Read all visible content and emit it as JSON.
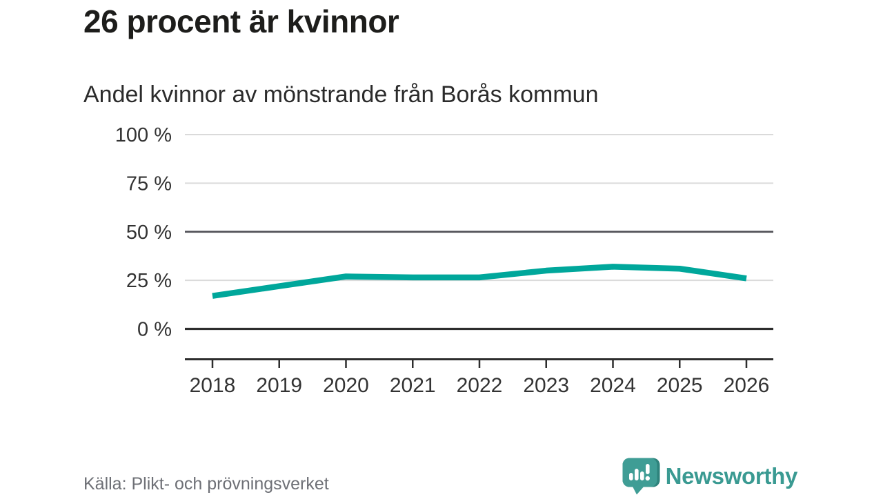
{
  "header": {
    "title": "26 procent är kvinnor",
    "subtitle": "Andel kvinnor av mönstrande från Borås kommun"
  },
  "chart_data": {
    "type": "line",
    "title": "Andel kvinnor av mönstrande från Borås kommun",
    "categories": [
      "2018",
      "2019",
      "2020",
      "2021",
      "2022",
      "2023",
      "2024",
      "2025",
      "2026"
    ],
    "series": [
      {
        "name": "Andel kvinnor av mönstrande",
        "values": [
          17,
          22,
          27,
          26.5,
          26.5,
          30,
          32,
          31,
          26
        ]
      }
    ],
    "unit": "%",
    "xlabel": "",
    "ylabel": "",
    "ylim": [
      0,
      100
    ],
    "grid": "horizontal",
    "legend": "none",
    "benchmark_value": 50,
    "yticks": [
      {
        "value": 100,
        "label": "100 %",
        "style": "light"
      },
      {
        "value": 75,
        "label": "75 %",
        "style": "light"
      },
      {
        "value": 50,
        "label": "50 %",
        "style": "dark"
      },
      {
        "value": 25,
        "label": "25 %",
        "style": "light"
      },
      {
        "value": 0,
        "label": "0 %",
        "style": "baseline"
      }
    ]
  },
  "footer": {
    "source": "Källa: Plikt- och prövningsverket",
    "brand": "Newsworthy"
  },
  "colors": {
    "line": "#00a79b",
    "grid_light": "#dadada",
    "grid_dark": "#515157",
    "axis": "#2d2d2d",
    "tick_text": "#333333",
    "title_text": "#1d1d1b",
    "source_text": "#6e7076",
    "brand_teal": "#3a9a92",
    "logo_teal": "#3f9d95",
    "logo_shade": "#2e837c"
  }
}
